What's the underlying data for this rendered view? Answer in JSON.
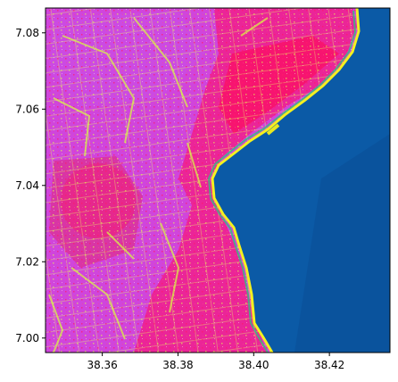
{
  "map": {
    "type": "raster-image",
    "description_colors": {
      "water": "#0b5aa6",
      "water_deep": "#0a4f98",
      "land_magenta": "#d640d8",
      "land_pink": "#ff1a7a",
      "land_red": "#ff0a4a",
      "vegetation_yellow": "#d8ff40",
      "shore_yellow": "#f4f020",
      "shore_green": "#30c080"
    },
    "x_axis": {
      "range": [
        38.345,
        38.436
      ],
      "ticks": [
        {
          "value": 38.36,
          "label": "38.36"
        },
        {
          "value": 38.38,
          "label": "38.38"
        },
        {
          "value": 38.4,
          "label": "38.40"
        },
        {
          "value": 38.42,
          "label": "38.42"
        }
      ]
    },
    "y_axis": {
      "range": [
        6.9962,
        7.0865
      ],
      "ticks": [
        {
          "value": 7.0,
          "label": "7.00"
        },
        {
          "value": 7.02,
          "label": "7.02"
        },
        {
          "value": 7.04,
          "label": "7.04"
        },
        {
          "value": 7.06,
          "label": "7.06"
        },
        {
          "value": 7.08,
          "label": "7.08"
        }
      ]
    }
  }
}
